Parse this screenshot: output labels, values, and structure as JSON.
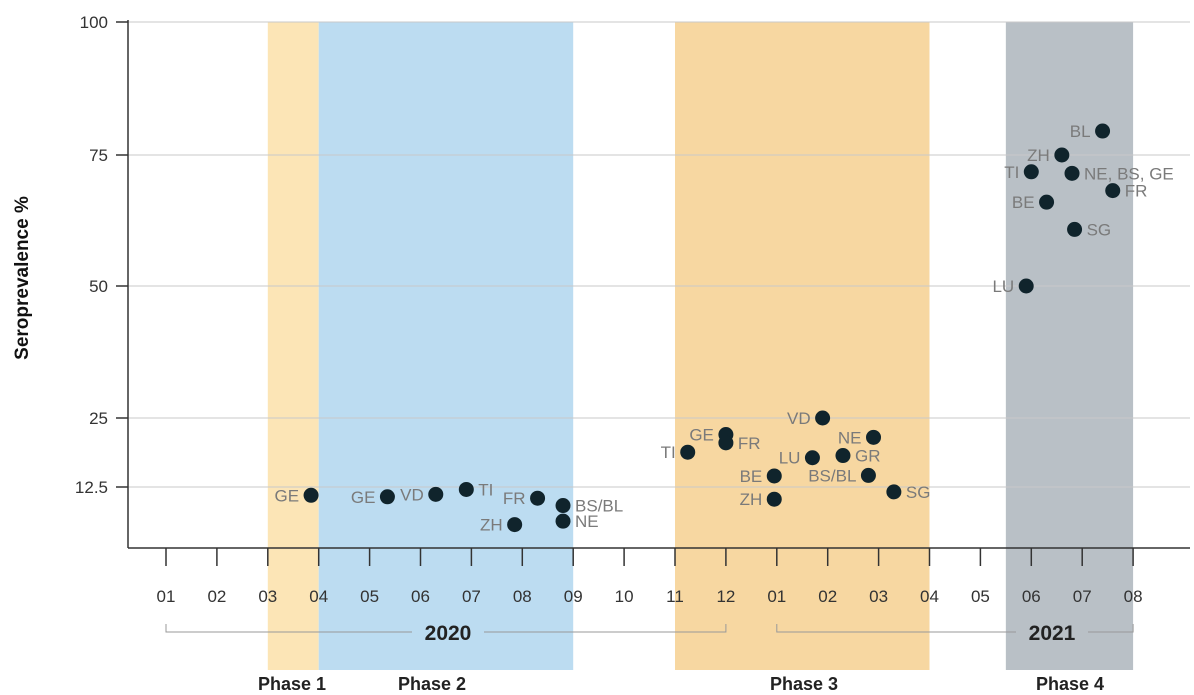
{
  "chart_data": {
    "type": "scatter",
    "title": "",
    "xlabel": "",
    "ylabel": "Seroprevalence %",
    "y_ticks": [
      "12.5",
      "25",
      "50",
      "75",
      "100"
    ],
    "x_ticks": [
      "01",
      "02",
      "03",
      "04",
      "05",
      "06",
      "07",
      "08",
      "09",
      "10",
      "11",
      "12",
      "01",
      "02",
      "03",
      "04",
      "05",
      "06",
      "07",
      "08"
    ],
    "years": [
      "2020",
      "2021"
    ],
    "phases": [
      {
        "name": "Phase 1",
        "start": 3.0,
        "end": 4.0,
        "color": "#fce5b6"
      },
      {
        "name": "Phase 2",
        "start": 4.0,
        "end": 9.0,
        "color": "#bcdcf1"
      },
      {
        "name": "Phase 3",
        "start": 11.0,
        "end": 16.0,
        "color": "#f7d7a1"
      },
      {
        "name": "Phase 4",
        "start": 17.5,
        "end": 20.0,
        "color": "#b9c0c6"
      }
    ],
    "points": [
      {
        "label": "GE",
        "x": 3.85,
        "y": 10.8,
        "anchor": "left"
      },
      {
        "label": "GE",
        "x": 5.35,
        "y": 10.5,
        "anchor": "left"
      },
      {
        "label": "VD",
        "x": 6.3,
        "y": 11.0,
        "anchor": "left"
      },
      {
        "label": "TI",
        "x": 6.9,
        "y": 12.0,
        "anchor": "right"
      },
      {
        "label": "FR",
        "x": 8.3,
        "y": 10.2,
        "anchor": "left"
      },
      {
        "label": "ZH",
        "x": 7.85,
        "y": 4.8,
        "anchor": "left"
      },
      {
        "label": "BS/BL",
        "x": 8.8,
        "y": 8.7,
        "anchor": "right"
      },
      {
        "label": "NE",
        "x": 8.8,
        "y": 5.5,
        "anchor": "right"
      },
      {
        "label": "TI",
        "x": 11.25,
        "y": 18.8,
        "anchor": "left"
      },
      {
        "label": "GE",
        "x": 12.0,
        "y": 22.0,
        "anchor": "left"
      },
      {
        "label": "FR",
        "x": 12.0,
        "y": 20.5,
        "anchor": "right"
      },
      {
        "label": "BE",
        "x": 12.95,
        "y": 14.5,
        "anchor": "left"
      },
      {
        "label": "ZH",
        "x": 12.95,
        "y": 10.0,
        "anchor": "left"
      },
      {
        "label": "LU",
        "x": 13.7,
        "y": 17.8,
        "anchor": "left"
      },
      {
        "label": "VD",
        "x": 13.9,
        "y": 25.0,
        "anchor": "left"
      },
      {
        "label": "NE",
        "x": 14.9,
        "y": 21.5,
        "anchor": "left"
      },
      {
        "label": "GR",
        "x": 14.3,
        "y": 18.2,
        "anchor": "right"
      },
      {
        "label": "BS/BL",
        "x": 14.8,
        "y": 14.6,
        "anchor": "left"
      },
      {
        "label": "SG",
        "x": 15.3,
        "y": 11.5,
        "anchor": "right"
      },
      {
        "label": "BL",
        "x": 19.4,
        "y": 79.5,
        "anchor": "left"
      },
      {
        "label": "ZH",
        "x": 18.6,
        "y": 75.0,
        "anchor": "left"
      },
      {
        "label": "TI",
        "x": 18.0,
        "y": 71.8,
        "anchor": "left"
      },
      {
        "label": "NE, BS, GE",
        "x": 18.8,
        "y": 71.5,
        "anchor": "right"
      },
      {
        "label": "FR",
        "x": 19.6,
        "y": 68.2,
        "anchor": "right"
      },
      {
        "label": "BE",
        "x": 18.3,
        "y": 66.0,
        "anchor": "left"
      },
      {
        "label": "SG",
        "x": 18.85,
        "y": 60.8,
        "anchor": "right"
      },
      {
        "label": "LU",
        "x": 17.9,
        "y": 50.0,
        "anchor": "left"
      }
    ],
    "grid": true,
    "point_color": "#10242c"
  }
}
